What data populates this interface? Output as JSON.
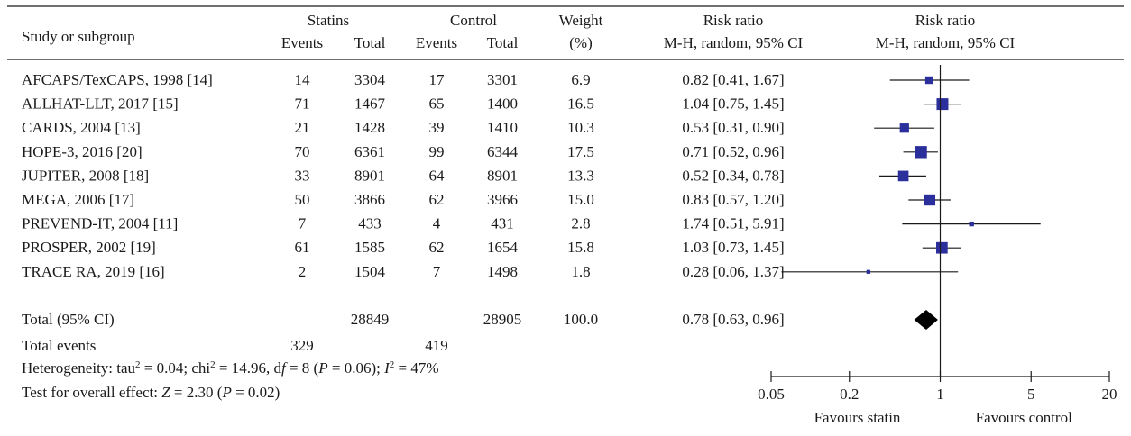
{
  "headers": {
    "study": "Study or subgroup",
    "statins": "Statins",
    "control": "Control",
    "events": "Events",
    "total": "Total",
    "weight": "Weight",
    "weight_unit": "(%)",
    "rr": "Risk ratio",
    "method": "M-H, random, 95% CI"
  },
  "chart_data": {
    "type": "forest",
    "x_scale": "log",
    "xlim": [
      0.05,
      20
    ],
    "ticks": [
      "0.05",
      "0.2",
      "1",
      "5",
      "20"
    ],
    "xlabel_left": "Favours statin",
    "xlabel_right": "Favours control",
    "studies": [
      {
        "name": "AFCAPS/TexCAPS, 1998 [14]",
        "se": "14",
        "st": "3304",
        "ce": "17",
        "ct": "3301",
        "w": "6.9",
        "ci_text": "0.82 [0.41, 1.67]",
        "rr": 0.82,
        "lo": 0.41,
        "hi": 1.67
      },
      {
        "name": "ALLHAT-LLT, 2017 [15]",
        "se": "71",
        "st": "1467",
        "ce": "65",
        "ct": "1400",
        "w": "16.5",
        "ci_text": "1.04 [0.75, 1.45]",
        "rr": 1.04,
        "lo": 0.75,
        "hi": 1.45
      },
      {
        "name": "CARDS, 2004 [13]",
        "se": "21",
        "st": "1428",
        "ce": "39",
        "ct": "1410",
        "w": "10.3",
        "ci_text": "0.53 [0.31, 0.90]",
        "rr": 0.53,
        "lo": 0.31,
        "hi": 0.9
      },
      {
        "name": "HOPE-3, 2016 [20]",
        "se": "70",
        "st": "6361",
        "ce": "99",
        "ct": "6344",
        "w": "17.5",
        "ci_text": "0.71 [0.52, 0.96]",
        "rr": 0.71,
        "lo": 0.52,
        "hi": 0.96
      },
      {
        "name": "JUPITER, 2008 [18]",
        "se": "33",
        "st": "8901",
        "ce": "64",
        "ct": "8901",
        "w": "13.3",
        "ci_text": "0.52 [0.34, 0.78]",
        "rr": 0.52,
        "lo": 0.34,
        "hi": 0.78
      },
      {
        "name": "MEGA, 2006 [17]",
        "se": "50",
        "st": "3866",
        "ce": "62",
        "ct": "3966",
        "w": "15.0",
        "ci_text": "0.83 [0.57, 1.20]",
        "rr": 0.83,
        "lo": 0.57,
        "hi": 1.2
      },
      {
        "name": "PREVEND-IT, 2004 [11]",
        "se": "7",
        "st": "433",
        "ce": "4",
        "ct": "431",
        "w": "2.8",
        "ci_text": "1.74 [0.51, 5.91]",
        "rr": 1.74,
        "lo": 0.51,
        "hi": 5.91
      },
      {
        "name": "PROSPER, 2002 [19]",
        "se": "61",
        "st": "1585",
        "ce": "62",
        "ct": "1654",
        "w": "15.8",
        "ci_text": "1.03 [0.73, 1.45]",
        "rr": 1.03,
        "lo": 0.73,
        "hi": 1.45
      },
      {
        "name": "TRACE RA, 2019 [16]",
        "se": "2",
        "st": "1504",
        "ce": "7",
        "ct": "1498",
        "w": "1.8",
        "ci_text": "0.28 [0.06, 1.37]",
        "rr": 0.28,
        "lo": 0.06,
        "hi": 1.37
      }
    ],
    "total": {
      "label": "Total (95% CI)",
      "st": "28849",
      "ct": "28905",
      "w": "100.0",
      "ci_text": "0.78 [0.63, 0.96]",
      "rr": 0.78,
      "lo": 0.63,
      "hi": 0.96
    },
    "events": {
      "label": "Total events",
      "se": "329",
      "ce": "419"
    },
    "heterogeneity": {
      "tau2": "0.04",
      "chi2": "14.96",
      "df": "8",
      "p": "0.06",
      "i2": "47%"
    },
    "overall": {
      "z": "2.30",
      "p": "0.02"
    }
  }
}
